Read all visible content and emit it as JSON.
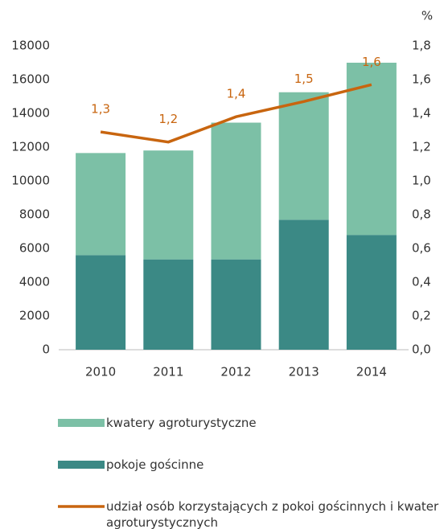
{
  "chart_data": {
    "type": "bar",
    "stacked": true,
    "categories": [
      "2010",
      "2011",
      "2012",
      "2013",
      "2014"
    ],
    "series": [
      {
        "name": "kwatery agroturystyczne",
        "color": "#7cc0a6",
        "values": [
          6050,
          6450,
          8100,
          7550,
          10200
        ]
      },
      {
        "name": "pokoje gościnne",
        "color": "#3b8985",
        "values": [
          5600,
          5350,
          5350,
          7700,
          6800
        ]
      },
      {
        "name": "udział osób korzystających z pokoi gościnnych i kwater agroturystycznych",
        "type": "line",
        "axis": "y2",
        "color": "#c8650f",
        "values": [
          1.29,
          1.23,
          1.38,
          1.47,
          1.57
        ],
        "value_labels": [
          "1,3",
          "1,2",
          "1,4",
          "1,5",
          "1,6"
        ]
      }
    ],
    "ylim": [
      0,
      18000
    ],
    "yticks": [
      0,
      2000,
      4000,
      6000,
      8000,
      10000,
      12000,
      14000,
      16000,
      18000
    ],
    "y2label": "%",
    "y2lim": [
      0,
      1.8
    ],
    "y2ticks": [
      {
        "value": 0,
        "label": "0,0"
      },
      {
        "value": 0.2,
        "label": "0,2"
      },
      {
        "value": 0.4,
        "label": "0,4"
      },
      {
        "value": 0.6,
        "label": "0,6"
      },
      {
        "value": 0.8,
        "label": "0,8"
      },
      {
        "value": 1.0,
        "label": "1,0"
      },
      {
        "value": 1.2,
        "label": "1,2"
      },
      {
        "value": 1.4,
        "label": "1,4"
      },
      {
        "value": 1.6,
        "label": "1,6"
      },
      {
        "value": 1.8,
        "label": "1,8"
      }
    ],
    "grid": false,
    "legend": "bottom"
  }
}
